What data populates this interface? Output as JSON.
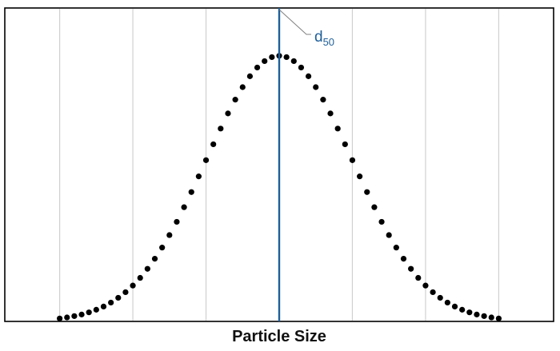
{
  "chart_data": {
    "type": "scatter",
    "title": "",
    "xlabel": "Particle Size",
    "ylabel": "",
    "grid": true,
    "xlim": [
      -3.75,
      3.75
    ],
    "ylim": [
      0,
      1.18
    ],
    "x_tick_positions": [
      -3,
      -2,
      -1,
      0,
      1,
      2,
      3
    ],
    "series": [
      {
        "values": [
          {
            "x": -3.0,
            "y": 0.011
          },
          {
            "x": -2.9,
            "y": 0.015
          },
          {
            "x": -2.8,
            "y": 0.02
          },
          {
            "x": -2.7,
            "y": 0.026
          },
          {
            "x": -2.6,
            "y": 0.034
          },
          {
            "x": -2.5,
            "y": 0.044
          },
          {
            "x": -2.4,
            "y": 0.056
          },
          {
            "x": -2.3,
            "y": 0.071
          },
          {
            "x": -2.2,
            "y": 0.089
          },
          {
            "x": -2.1,
            "y": 0.11
          },
          {
            "x": -2.0,
            "y": 0.135
          },
          {
            "x": -1.9,
            "y": 0.164
          },
          {
            "x": -1.8,
            "y": 0.198
          },
          {
            "x": -1.7,
            "y": 0.236
          },
          {
            "x": -1.6,
            "y": 0.278
          },
          {
            "x": -1.5,
            "y": 0.325
          },
          {
            "x": -1.4,
            "y": 0.375
          },
          {
            "x": -1.3,
            "y": 0.43
          },
          {
            "x": -1.2,
            "y": 0.487
          },
          {
            "x": -1.1,
            "y": 0.546
          },
          {
            "x": -1.0,
            "y": 0.607
          },
          {
            "x": -0.9,
            "y": 0.667
          },
          {
            "x": -0.8,
            "y": 0.726
          },
          {
            "x": -0.7,
            "y": 0.783
          },
          {
            "x": -0.6,
            "y": 0.835
          },
          {
            "x": -0.5,
            "y": 0.882
          },
          {
            "x": -0.4,
            "y": 0.923
          },
          {
            "x": -0.3,
            "y": 0.956
          },
          {
            "x": -0.2,
            "y": 0.98
          },
          {
            "x": -0.1,
            "y": 0.995
          },
          {
            "x": 0.0,
            "y": 1.0
          },
          {
            "x": 0.1,
            "y": 0.995
          },
          {
            "x": 0.2,
            "y": 0.98
          },
          {
            "x": 0.3,
            "y": 0.956
          },
          {
            "x": 0.4,
            "y": 0.923
          },
          {
            "x": 0.5,
            "y": 0.882
          },
          {
            "x": 0.6,
            "y": 0.835
          },
          {
            "x": 0.7,
            "y": 0.783
          },
          {
            "x": 0.8,
            "y": 0.726
          },
          {
            "x": 0.9,
            "y": 0.667
          },
          {
            "x": 1.0,
            "y": 0.607
          },
          {
            "x": 1.1,
            "y": 0.546
          },
          {
            "x": 1.2,
            "y": 0.487
          },
          {
            "x": 1.3,
            "y": 0.43
          },
          {
            "x": 1.4,
            "y": 0.375
          },
          {
            "x": 1.5,
            "y": 0.325
          },
          {
            "x": 1.6,
            "y": 0.278
          },
          {
            "x": 1.7,
            "y": 0.236
          },
          {
            "x": 1.8,
            "y": 0.198
          },
          {
            "x": 1.9,
            "y": 0.164
          },
          {
            "x": 2.0,
            "y": 0.135
          },
          {
            "x": 2.1,
            "y": 0.11
          },
          {
            "x": 2.2,
            "y": 0.089
          },
          {
            "x": 2.3,
            "y": 0.071
          },
          {
            "x": 2.4,
            "y": 0.056
          },
          {
            "x": 2.5,
            "y": 0.044
          },
          {
            "x": 2.6,
            "y": 0.034
          },
          {
            "x": 2.7,
            "y": 0.026
          },
          {
            "x": 2.8,
            "y": 0.02
          },
          {
            "x": 2.9,
            "y": 0.015
          },
          {
            "x": 3.0,
            "y": 0.011
          }
        ],
        "color": "#000000"
      }
    ],
    "annotations": [
      {
        "type": "vertical-line",
        "x": 0.0,
        "label": "d",
        "label_subscript": "50",
        "color": "#1f5f99"
      }
    ]
  },
  "colors": {
    "points": "#000000",
    "median_line": "#1f5f99",
    "gridline": "#d0d0d0",
    "frame": "#000000",
    "leader": "#808080"
  }
}
